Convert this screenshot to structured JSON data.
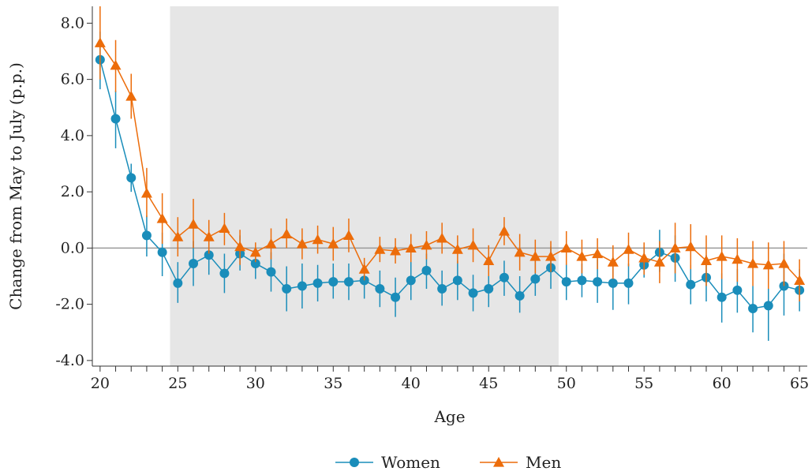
{
  "chart_data": {
    "type": "line",
    "xlabel": "Age",
    "ylabel": "Change from May to July (p.p.)",
    "xlim": [
      19.5,
      65.5
    ],
    "ylim": [
      -4.2,
      8.6
    ],
    "x_ticks": [
      20,
      25,
      30,
      35,
      40,
      45,
      50,
      55,
      60,
      65
    ],
    "y_ticks": [
      -4.0,
      -2.0,
      0.0,
      2.0,
      4.0,
      6.0,
      8.0
    ],
    "y_tick_labels": [
      "-4.0",
      "-2.0",
      "0.0",
      "2.0",
      "4.0",
      "6.0",
      "8.0"
    ],
    "shaded_region": [
      24.5,
      49.5
    ],
    "reference_line_y": 0,
    "grid": false,
    "legend_position": "bottom-center",
    "x": [
      20,
      21,
      22,
      23,
      24,
      25,
      26,
      27,
      28,
      29,
      30,
      31,
      32,
      33,
      34,
      35,
      36,
      37,
      38,
      39,
      40,
      41,
      42,
      43,
      44,
      45,
      46,
      47,
      48,
      49,
      50,
      51,
      52,
      53,
      54,
      55,
      56,
      57,
      58,
      59,
      60,
      61,
      62,
      63,
      64,
      65
    ],
    "series": [
      {
        "name": "Women",
        "color": "#1a8dba",
        "marker": "circle",
        "values": [
          6.7,
          4.6,
          2.5,
          0.45,
          -0.15,
          -1.25,
          -0.55,
          -0.25,
          -0.9,
          -0.2,
          -0.55,
          -0.85,
          -1.45,
          -1.35,
          -1.25,
          -1.2,
          -1.2,
          -1.15,
          -1.45,
          -1.75,
          -1.15,
          -0.8,
          -1.45,
          -1.15,
          -1.6,
          -1.45,
          -1.05,
          -1.7,
          -1.1,
          -0.7,
          -1.2,
          -1.15,
          -1.2,
          -1.25,
          -1.25,
          -0.6,
          -0.15,
          -0.35,
          -1.3,
          -1.05,
          -1.75,
          -1.5,
          -2.15,
          -2.05,
          -1.35,
          -1.5
        ],
        "err_low": [
          5.65,
          3.55,
          2.0,
          -0.3,
          -1.0,
          -1.95,
          -1.35,
          -0.95,
          -1.6,
          -0.8,
          -1.1,
          -1.55,
          -2.25,
          -2.15,
          -1.9,
          -1.8,
          -1.85,
          -1.8,
          -2.1,
          -2.45,
          -1.85,
          -1.45,
          -2.05,
          -1.85,
          -2.25,
          -2.1,
          -1.7,
          -2.3,
          -1.7,
          -1.45,
          -1.85,
          -1.75,
          -1.95,
          -2.2,
          -2.0,
          -1.05,
          -0.85,
          -1.2,
          -2.0,
          -1.9,
          -2.65,
          -2.3,
          -3.0,
          -3.3,
          -2.4,
          -2.25
        ],
        "err_high": [
          7.7,
          5.6,
          3.0,
          1.15,
          0.55,
          -0.5,
          0.25,
          0.45,
          -0.2,
          0.45,
          -0.05,
          -0.15,
          -0.65,
          -0.55,
          -0.6,
          -0.55,
          -0.55,
          -0.5,
          -0.8,
          -1.05,
          -0.45,
          -0.2,
          -0.8,
          -0.45,
          -0.95,
          -0.8,
          -0.45,
          -1.0,
          -0.45,
          0.05,
          -0.55,
          -0.55,
          -0.4,
          -0.3,
          -0.55,
          0.05,
          0.65,
          0.45,
          -0.6,
          -0.25,
          -0.9,
          -0.75,
          -1.35,
          -0.8,
          -0.2,
          -0.75
        ]
      },
      {
        "name": "Men",
        "color": "#ec6c0a",
        "marker": "triangle",
        "values": [
          7.3,
          6.5,
          5.4,
          1.95,
          1.05,
          0.4,
          0.85,
          0.4,
          0.7,
          0.05,
          -0.15,
          0.15,
          0.5,
          0.15,
          0.3,
          0.15,
          0.45,
          -0.75,
          -0.05,
          -0.1,
          0.0,
          0.1,
          0.35,
          -0.05,
          0.1,
          -0.45,
          0.6,
          -0.15,
          -0.3,
          -0.3,
          0.0,
          -0.3,
          -0.2,
          -0.5,
          -0.05,
          -0.35,
          -0.5,
          0.0,
          0.05,
          -0.45,
          -0.3,
          -0.4,
          -0.55,
          -0.6,
          -0.55,
          -1.15
        ],
        "err_low": [
          6.0,
          5.55,
          4.6,
          1.1,
          0.15,
          -0.3,
          0.0,
          -0.2,
          0.1,
          -0.6,
          -0.5,
          -0.4,
          0.0,
          -0.4,
          -0.2,
          -0.45,
          -0.15,
          -1.15,
          -0.5,
          -0.55,
          -0.5,
          -0.4,
          -0.2,
          -0.55,
          -0.5,
          -1.0,
          0.1,
          -0.8,
          -0.9,
          -0.85,
          -0.6,
          -0.9,
          -0.75,
          -1.1,
          -0.65,
          -0.95,
          -1.25,
          -0.9,
          -0.75,
          -1.35,
          -1.1,
          -1.2,
          -1.35,
          -1.45,
          -1.35,
          -1.9
        ],
        "err_high": [
          8.6,
          7.4,
          6.2,
          2.85,
          1.95,
          1.1,
          1.75,
          1.0,
          1.25,
          0.65,
          0.2,
          0.7,
          1.05,
          0.7,
          0.8,
          0.75,
          1.05,
          -0.35,
          0.4,
          0.35,
          0.5,
          0.6,
          0.9,
          0.45,
          0.7,
          0.1,
          1.1,
          0.5,
          0.3,
          0.25,
          0.6,
          0.3,
          0.35,
          0.1,
          0.55,
          0.2,
          0.25,
          0.9,
          0.85,
          0.45,
          0.45,
          0.35,
          0.25,
          0.2,
          0.25,
          -0.4
        ]
      }
    ]
  }
}
